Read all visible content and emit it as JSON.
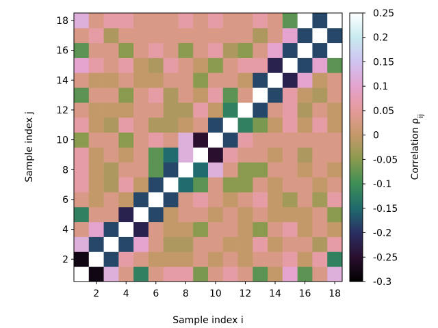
{
  "chart_data": {
    "type": "heatmap",
    "xlabel": "Sample index i",
    "ylabel": "Sample index j",
    "colorbar_label": "Correlation ρ",
    "colorbar_label_subscript": "ij",
    "colormap": "cubehelix-like (dark purple → teal → green → tan → pink → lavender → white)",
    "vmin": -0.3,
    "vmax": 0.25,
    "x_ticks": [
      "2",
      "4",
      "6",
      "8",
      "10",
      "12",
      "14",
      "16",
      "18"
    ],
    "y_ticks": [
      "2",
      "4",
      "6",
      "8",
      "10",
      "12",
      "14",
      "16",
      "18"
    ],
    "colorbar_ticks": [
      "0.25",
      "0.2",
      "0.15",
      "0.1",
      "0.05",
      "0",
      "-0.05",
      "-0.1",
      "-0.15",
      "-0.2",
      "-0.25",
      "-0.3"
    ],
    "n": 18,
    "matrix_rows_j1_to_j18": [
      [
        0.25,
        -0.28,
        0.12,
        0.03,
        -0.12,
        0.03,
        0.06,
        0.06,
        -0.06,
        0.03,
        0.06,
        0.03,
        -0.08,
        0.0,
        0.1,
        -0.08,
        0.03,
        0.12
      ],
      [
        -0.28,
        0.25,
        -0.18,
        0.06,
        0.03,
        0.0,
        0.0,
        0.0,
        0.03,
        0.0,
        0.03,
        0.0,
        0.03,
        0.03,
        0.06,
        0.0,
        0.06,
        -0.12
      ],
      [
        0.12,
        -0.18,
        0.25,
        -0.18,
        0.1,
        0.03,
        -0.02,
        -0.02,
        0.03,
        0.03,
        0.0,
        0.0,
        0.06,
        0.0,
        0.03,
        0.03,
        -0.02,
        0.06
      ],
      [
        0.03,
        0.1,
        -0.18,
        0.25,
        -0.22,
        0.03,
        0.0,
        0.0,
        -0.05,
        0.03,
        0.03,
        0.0,
        -0.05,
        0.03,
        0.06,
        0.0,
        0.03,
        0.0
      ],
      [
        -0.12,
        0.03,
        0.03,
        -0.22,
        0.25,
        -0.18,
        0.0,
        0.03,
        0.03,
        0.0,
        0.03,
        0.0,
        0.03,
        0.0,
        0.0,
        0.0,
        0.03,
        -0.05
      ],
      [
        0.03,
        0.0,
        0.03,
        0.0,
        -0.18,
        0.25,
        -0.18,
        0.03,
        0.06,
        0.03,
        0.0,
        0.03,
        0.06,
        0.0,
        -0.03,
        0.03,
        -0.03,
        0.06
      ],
      [
        0.06,
        0.0,
        -0.02,
        0.06,
        0.0,
        -0.18,
        0.25,
        -0.15,
        -0.08,
        0.03,
        -0.05,
        -0.05,
        0.03,
        0.0,
        0.03,
        0.03,
        0.0,
        0.03
      ],
      [
        0.06,
        0.0,
        -0.02,
        0.03,
        0.03,
        -0.08,
        -0.18,
        0.25,
        -0.15,
        0.12,
        0.03,
        -0.05,
        -0.05,
        0.03,
        0.03,
        0.0,
        0.03,
        0.0
      ],
      [
        0.06,
        0.0,
        0.03,
        0.0,
        0.03,
        -0.08,
        -0.15,
        0.12,
        0.25,
        -0.25,
        0.06,
        0.03,
        0.03,
        0.0,
        0.03,
        -0.02,
        0.03,
        0.03
      ],
      [
        -0.05,
        0.03,
        0.03,
        -0.05,
        0.03,
        0.06,
        0.03,
        0.12,
        -0.25,
        0.25,
        -0.18,
        0.06,
        0.03,
        0.03,
        0.03,
        0.03,
        0.03,
        0.03
      ],
      [
        0.06,
        0.0,
        -0.02,
        0.06,
        0.03,
        -0.02,
        -0.02,
        0.0,
        0.03,
        -0.18,
        0.25,
        -0.12,
        -0.06,
        0.0,
        0.06,
        0.0,
        0.06,
        0.0
      ],
      [
        0.03,
        0.0,
        0.0,
        0.0,
        0.03,
        0.03,
        -0.02,
        -0.02,
        0.06,
        0.0,
        -0.12,
        0.25,
        -0.18,
        0.03,
        0.06,
        -0.02,
        0.03,
        0.0
      ],
      [
        -0.08,
        0.03,
        0.03,
        -0.05,
        0.03,
        0.06,
        -0.02,
        0.03,
        0.0,
        0.06,
        -0.08,
        0.03,
        0.25,
        -0.18,
        0.06,
        0.0,
        -0.02,
        0.03
      ],
      [
        0.03,
        0.0,
        0.0,
        0.03,
        0.0,
        0.0,
        0.03,
        0.03,
        -0.05,
        0.03,
        0.03,
        0.0,
        -0.18,
        0.25,
        -0.22,
        0.1,
        0.0,
        0.03
      ],
      [
        0.1,
        0.06,
        0.03,
        0.06,
        0.0,
        -0.02,
        0.06,
        0.03,
        0.0,
        -0.05,
        0.03,
        0.06,
        0.06,
        -0.22,
        0.25,
        -0.18,
        0.1,
        -0.08
      ],
      [
        -0.08,
        0.03,
        0.03,
        -0.05,
        0.03,
        0.06,
        0.03,
        -0.05,
        0.03,
        0.06,
        -0.02,
        -0.05,
        0.03,
        0.1,
        -0.18,
        0.25,
        -0.18,
        0.25
      ],
      [
        0.03,
        0.06,
        -0.02,
        0.03,
        0.03,
        0.03,
        0.03,
        0.03,
        0.03,
        0.03,
        0.03,
        0.03,
        -0.02,
        0.03,
        0.1,
        -0.18,
        0.25,
        -0.18
      ],
      [
        0.12,
        0.03,
        0.06,
        0.06,
        0.03,
        0.03,
        0.03,
        0.06,
        0.03,
        0.06,
        0.03,
        0.03,
        0.06,
        0.03,
        -0.08,
        0.25,
        -0.18,
        0.25
      ]
    ]
  }
}
